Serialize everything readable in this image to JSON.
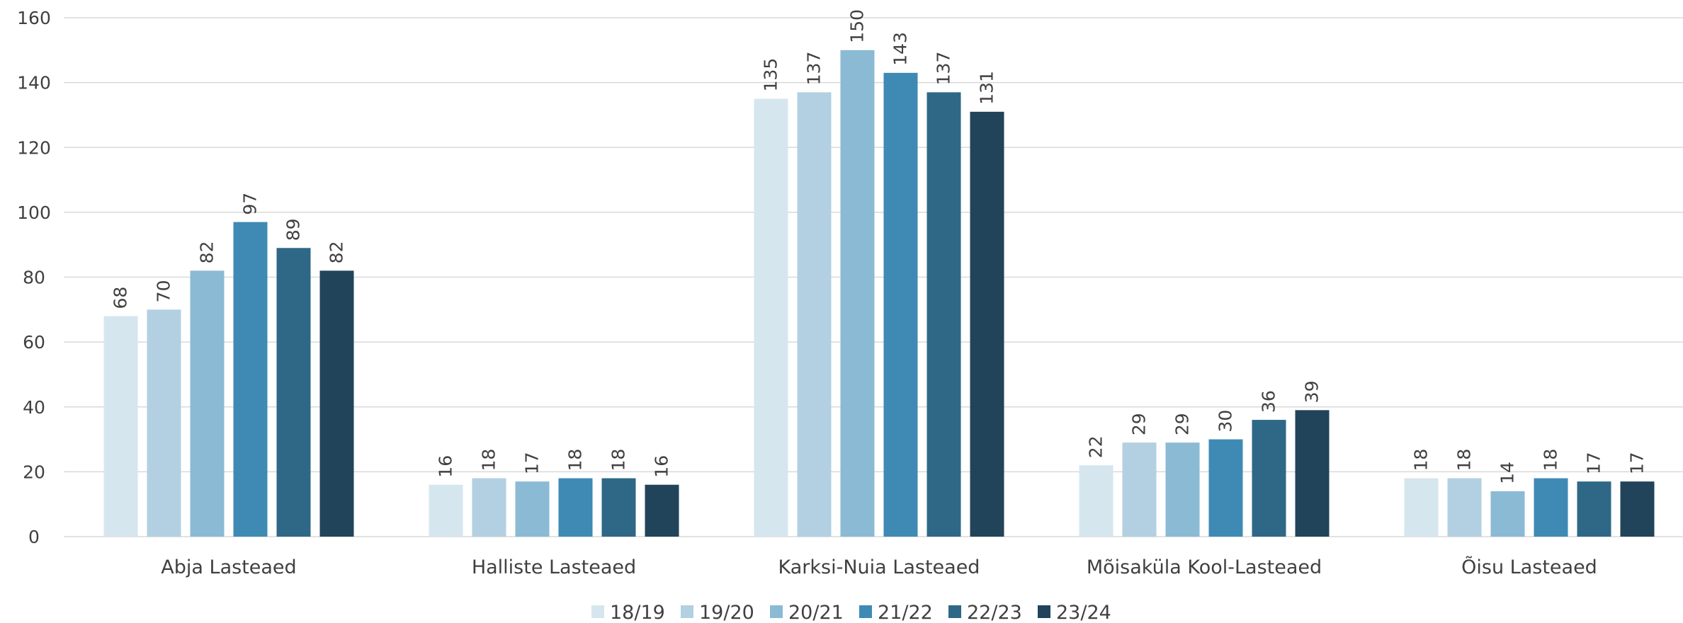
{
  "chart_data": {
    "type": "bar",
    "title": "",
    "xlabel": "",
    "ylabel": "",
    "ylim": [
      0,
      160
    ],
    "yticks": [
      0,
      20,
      40,
      60,
      80,
      100,
      120,
      140,
      160
    ],
    "grid": true,
    "legend_position": "bottom",
    "categories": [
      "Abja Lasteaed",
      "Halliste Lasteaed",
      "Karksi-Nuia Lasteaed",
      "Mõisaküla Kool-Lasteaed",
      "Õisu Lasteaed"
    ],
    "series": [
      {
        "name": "18/19",
        "color": "#d6e6ef",
        "values": [
          68,
          16,
          135,
          22,
          18
        ]
      },
      {
        "name": "19/20",
        "color": "#b2d0e1",
        "values": [
          70,
          18,
          137,
          29,
          18
        ]
      },
      {
        "name": "20/21",
        "color": "#8bbad5",
        "values": [
          82,
          17,
          150,
          29,
          14
        ]
      },
      {
        "name": "21/22",
        "color": "#3f8ab4",
        "values": [
          97,
          18,
          143,
          30,
          18
        ]
      },
      {
        "name": "22/23",
        "color": "#2e6886",
        "values": [
          89,
          18,
          137,
          36,
          17
        ]
      },
      {
        "name": "23/24",
        "color": "#21445a",
        "values": [
          82,
          16,
          131,
          39,
          17
        ]
      }
    ]
  }
}
